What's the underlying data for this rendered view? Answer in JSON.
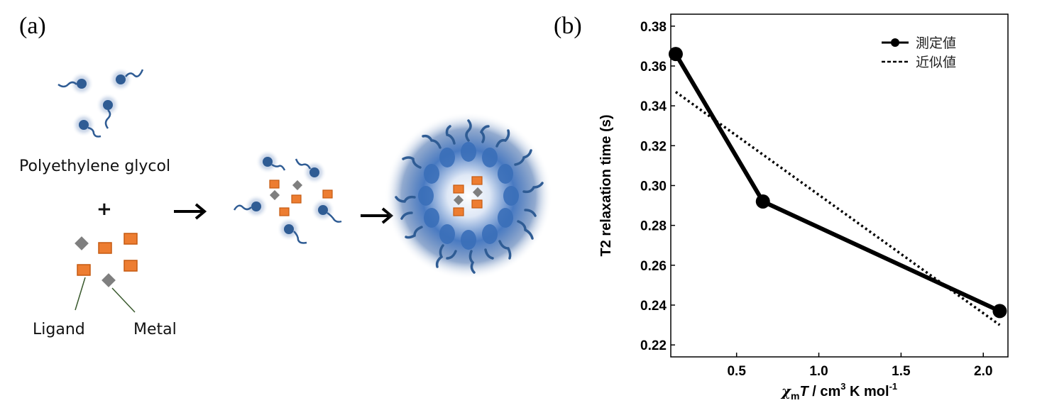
{
  "panels": {
    "a_label": "(a)",
    "b_label": "(b)"
  },
  "scheme": {
    "peg_label": "Polyethylene glycol",
    "plus": "+",
    "ligand_label": "Ligand",
    "metal_label": "Metal",
    "colors": {
      "peg_bead": "#2f5c94",
      "peg_glow": "#9db3d3",
      "ligand": "#ed7d31",
      "ligand_edge": "#c55a11",
      "metal": "#7f7f7f",
      "leader_line": "#3a5a2e"
    }
  },
  "chart_data": {
    "type": "line",
    "xlabel_symbol": "χ",
    "xlabel_subscript": "m",
    "xlabel_T": "T",
    "xlabel_rest": " / cm",
    "xlabel_sup3": "3",
    "xlabel_mid": " K mol",
    "xlabel_sup": "-1",
    "ylabel": "T2 relaxation time (s)",
    "xlim": [
      0.1,
      2.15
    ],
    "ylim": [
      0.214,
      0.386
    ],
    "xticks": [
      0.5,
      1.0,
      1.5,
      2.0
    ],
    "xtick_labels": [
      "0.5",
      "1.0",
      "1.5",
      "2.0"
    ],
    "yticks": [
      0.22,
      0.24,
      0.26,
      0.28,
      0.3,
      0.32,
      0.34,
      0.36,
      0.38
    ],
    "ytick_labels": [
      "0.22",
      "0.24",
      "0.26",
      "0.28",
      "0.30",
      "0.32",
      "0.34",
      "0.36",
      "0.38"
    ],
    "legend_position": "top-right",
    "series": [
      {
        "name": "測定値",
        "style": "solid-marker",
        "x": [
          0.13,
          0.66,
          2.1
        ],
        "y": [
          0.366,
          0.292,
          0.237
        ]
      },
      {
        "name": "近似値",
        "style": "dotted",
        "x": [
          0.13,
          2.1
        ],
        "y": [
          0.347,
          0.23
        ]
      }
    ]
  }
}
